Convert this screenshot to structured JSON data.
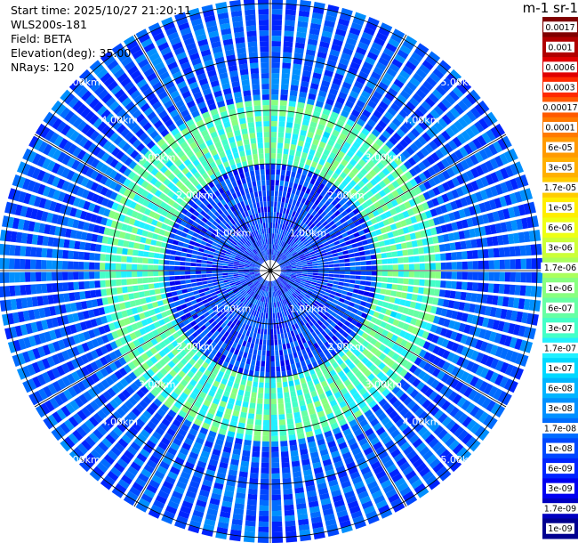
{
  "info": {
    "start_time": "Start time: 2025/10/27 21:20:11",
    "device": "WLS200s-181",
    "field": "Field: BETA",
    "elevation": "Elevation(deg): 35.00",
    "nrays": "NRays: 120"
  },
  "colorbar": {
    "unit_label": "m-1 sr-1",
    "ticks": [
      "0.0017",
      "0.001",
      "0.0006",
      "0.0003",
      "0.00017",
      "0.0001",
      "6e-05",
      "3e-05",
      "1.7e-05",
      "1e-05",
      "6e-06",
      "3e-06",
      "1.7e-06",
      "1e-06",
      "6e-07",
      "3e-07",
      "1.7e-07",
      "1e-07",
      "6e-08",
      "3e-08",
      "1.7e-08",
      "1e-08",
      "6e-09",
      "3e-09",
      "1.7e-09",
      "1e-09"
    ],
    "colors": [
      "#800000",
      "#b00000",
      "#e00000",
      "#ff2a00",
      "#ff5a00",
      "#ff7a00",
      "#ff9a00",
      "#ffb000",
      "#ffcc00",
      "#ffee00",
      "#eeff14",
      "#ccff38",
      "#aaff5c",
      "#88ff80",
      "#66ffa4",
      "#44ffc8",
      "#22f0ff",
      "#00d8ff",
      "#00b4ff",
      "#0090ff",
      "#006cff",
      "#0048ff",
      "#0024ff",
      "#0000f0",
      "#0000c0",
      "#000090"
    ]
  },
  "chart_data": {
    "type": "heatmap",
    "projection": "polar (PPI scan)",
    "field": "BETA",
    "range_rings_km": [
      1.0,
      2.0,
      3.0,
      4.0,
      5.0
    ],
    "range_ring_labels": [
      "1.00km",
      "2.00km",
      "3.00km",
      "4.00km",
      "5.00km"
    ],
    "max_range_km": 5.1,
    "n_rays": 120,
    "scale": "log",
    "value_range": [
      1e-09,
      0.0017
    ],
    "typical_values": [
      {
        "range_km": [
          0.0,
          2.0
        ],
        "value": 1e-08
      },
      {
        "range_km": [
          2.0,
          3.2
        ],
        "value": 4e-07
      },
      {
        "range_km": [
          3.2,
          5.1
        ],
        "value": 1.5e-08
      }
    ]
  }
}
